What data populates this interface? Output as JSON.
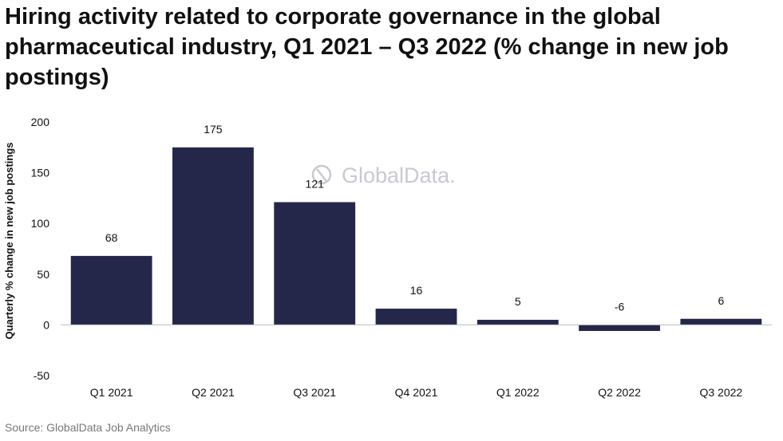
{
  "chart_data": {
    "type": "bar",
    "title": "Hiring activity related to corporate governance in the global pharmaceutical industry, Q1 2021 – Q3 2022 (% change in new job postings)",
    "ylabel": "Quarterly % change in new job postings",
    "xlabel": "",
    "categories": [
      "Q1 2021",
      "Q2 2021",
      "Q3 2021",
      "Q4 2021",
      "Q1 2022",
      "Q2 2022",
      "Q3 2022"
    ],
    "values": [
      68,
      175,
      121,
      16,
      5,
      -6,
      6
    ],
    "data_labels": [
      "68",
      "175",
      "121",
      "16",
      "5",
      "-6",
      "6"
    ],
    "ylim": [
      -50,
      200
    ],
    "yticks": [
      "200",
      "150",
      "100",
      "50",
      "0",
      "-50"
    ],
    "ytick_values": [
      200,
      150,
      100,
      50,
      0,
      -50
    ],
    "grid": false,
    "bar_color": "#25274a",
    "watermark": "GlobalData.",
    "source": "Source: GlobalData Job Analytics"
  }
}
